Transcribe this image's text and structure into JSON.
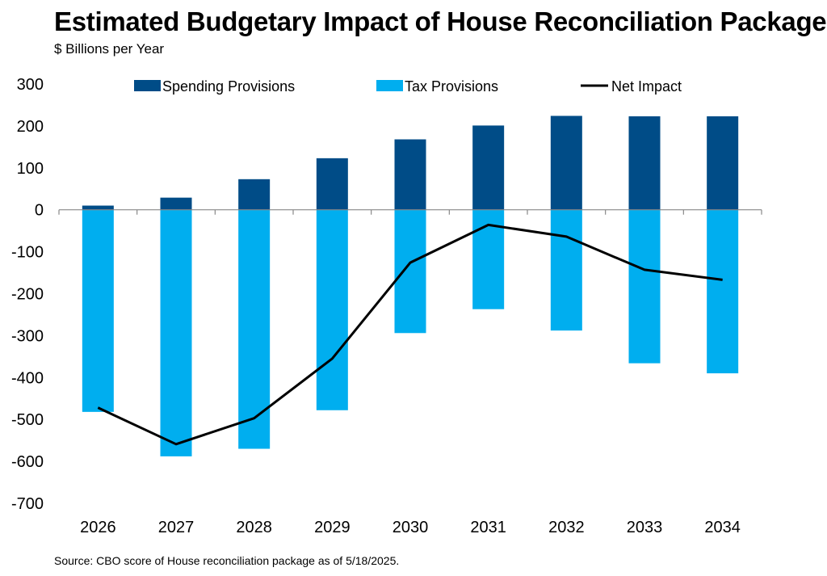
{
  "title": "Estimated Budgetary Impact of House Reconciliation Package",
  "subtitle": "$ Billions per Year",
  "source": "Source: CBO score of House reconciliation package as of 5/18/2025.",
  "chart_data": {
    "type": "bar",
    "stacked": true,
    "categories": [
      "2026",
      "2027",
      "2028",
      "2029",
      "2030",
      "2031",
      "2032",
      "2033",
      "2034"
    ],
    "series": [
      {
        "name": "Spending Provisions",
        "kind": "bar",
        "color": "#004C87",
        "values": [
          10,
          29,
          73,
          123,
          168,
          201,
          224,
          223,
          223
        ]
      },
      {
        "name": "Tax Provisions",
        "kind": "bar",
        "color": "#00AEEF",
        "values": [
          -482,
          -588,
          -570,
          -478,
          -294,
          -237,
          -288,
          -366,
          -390
        ]
      },
      {
        "name": "Net Impact",
        "kind": "line",
        "color": "#000000",
        "values": [
          -472,
          -559,
          -497,
          -355,
          -126,
          -36,
          -64,
          -143,
          -167
        ]
      }
    ],
    "ylim": [
      -700,
      300
    ],
    "yticks": [
      "300",
      "200",
      "100",
      "0",
      "-100",
      "-200",
      "-300",
      "-400",
      "-500",
      "-600",
      "-700"
    ],
    "ytick_values": [
      300,
      200,
      100,
      0,
      -100,
      -200,
      -300,
      -400,
      -500,
      -600,
      -700
    ],
    "legend_position": "top",
    "grid": false
  }
}
